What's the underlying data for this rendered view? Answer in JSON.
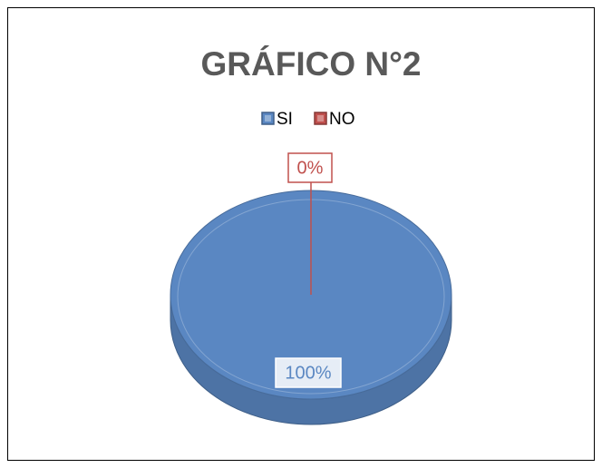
{
  "chart_data": {
    "type": "pie",
    "title": "GRÁFICO N°2",
    "categories": [
      "SI",
      "NO"
    ],
    "values": [
      100,
      0
    ],
    "value_labels": [
      "100%",
      "0%"
    ],
    "colors": [
      "#5a87c2",
      "#c0504d"
    ],
    "legend": "top"
  }
}
